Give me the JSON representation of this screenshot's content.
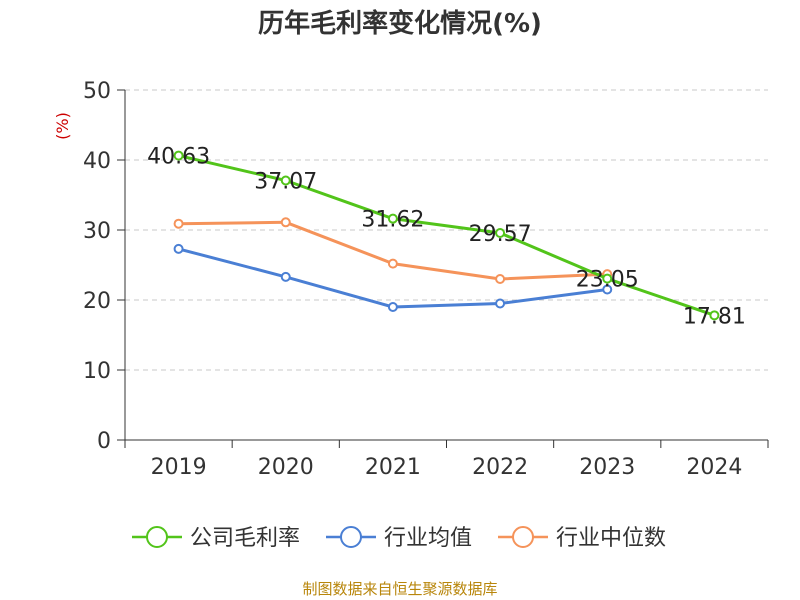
{
  "chart_data": {
    "type": "line",
    "title": "历年毛利率变化情况(%)",
    "ylabel": "(%)",
    "categories": [
      "2019",
      "2020",
      "2021",
      "2022",
      "2023",
      "2024"
    ],
    "ylim": [
      0,
      50
    ],
    "yticks": [
      0,
      10,
      20,
      30,
      40,
      50
    ],
    "grid": true,
    "legend_position": "bottom",
    "series": [
      {
        "name": "公司毛利率",
        "color": "#52c41a",
        "values": [
          40.63,
          37.07,
          31.62,
          29.57,
          23.05,
          17.81
        ],
        "labels": [
          "40.63",
          "37.07",
          "31.62",
          "29.57",
          "23.05",
          "17.81"
        ]
      },
      {
        "name": "行业均值",
        "color": "#4a7fd4",
        "values": [
          27.3,
          23.3,
          19.0,
          19.5,
          21.5,
          null
        ]
      },
      {
        "name": "行业中位数",
        "color": "#f5935a",
        "values": [
          30.9,
          31.1,
          25.2,
          23.0,
          23.7,
          null
        ]
      }
    ]
  },
  "source": "制图数据来自恒生聚源数据库"
}
